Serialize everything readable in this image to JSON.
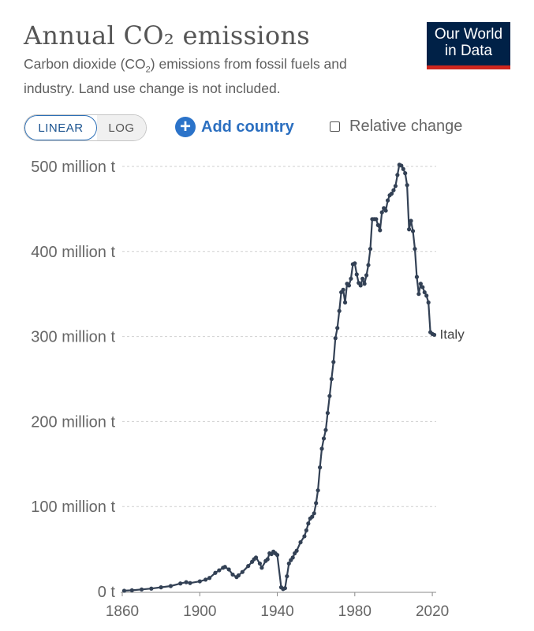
{
  "header": {
    "title": "Annual CO₂ emissions",
    "subtitle_part1": "Carbon dioxide (CO",
    "subtitle_sub": "2",
    "subtitle_part2": ") emissions from fossil fuels and industry. Land use change is not included.",
    "logo_line1": "Our World",
    "logo_line2": "in Data"
  },
  "controls": {
    "linear_label": "LINEAR",
    "log_label": "LOG",
    "add_country_label": "Add country",
    "relative_change_label": "Relative change"
  },
  "colors": {
    "line": "#334155",
    "logo_bg": "#002147",
    "logo_accent": "#ce261e",
    "accent_blue": "#2b73c9"
  },
  "chart_data": {
    "type": "line",
    "title": "Annual CO₂ emissions",
    "xlabel": "",
    "ylabel": "",
    "xlim": [
      1860,
      2022
    ],
    "ylim": [
      0,
      500000000
    ],
    "yticks": [
      {
        "value": 0,
        "label": "0 t"
      },
      {
        "value": 100000000,
        "label": "100 million t"
      },
      {
        "value": 200000000,
        "label": "200 million t"
      },
      {
        "value": 300000000,
        "label": "300 million t"
      },
      {
        "value": 400000000,
        "label": "400 million t"
      },
      {
        "value": 500000000,
        "label": "500 million t"
      }
    ],
    "xticks": [
      1860,
      1900,
      1940,
      1980,
      2020
    ],
    "grid": true,
    "series": [
      {
        "name": "Italy",
        "x": [
          1861,
          1865,
          1870,
          1875,
          1880,
          1885,
          1890,
          1893,
          1895,
          1900,
          1903,
          1905,
          1908,
          1910,
          1912,
          1913,
          1915,
          1917,
          1919,
          1920,
          1922,
          1925,
          1927,
          1928,
          1929,
          1931,
          1932,
          1934,
          1935,
          1936,
          1937,
          1938,
          1939,
          1940,
          1942,
          1943,
          1944,
          1945,
          1946,
          1947,
          1948,
          1949,
          1950,
          1952,
          1954,
          1955,
          1956,
          1957,
          1958,
          1959,
          1960,
          1961,
          1962,
          1963,
          1964,
          1965,
          1966,
          1967,
          1968,
          1969,
          1970,
          1971,
          1972,
          1973,
          1974,
          1975,
          1976,
          1977,
          1978,
          1979,
          1980,
          1981,
          1982,
          1983,
          1984,
          1985,
          1986,
          1987,
          1988,
          1989,
          1990,
          1991,
          1992,
          1993,
          1994,
          1995,
          1996,
          1997,
          1998,
          1999,
          2000,
          2001,
          2002,
          2003,
          2004,
          2005,
          2006,
          2007,
          2008,
          2009,
          2010,
          2011,
          2012,
          2013,
          2014,
          2015,
          2016,
          2017,
          2018,
          2019,
          2020,
          2021
        ],
        "values": [
          1000000,
          1500000,
          2500000,
          3500000,
          5000000,
          6500000,
          9500000,
          11000000,
          10000000,
          12000000,
          14000000,
          16000000,
          22000000,
          25000000,
          28000000,
          29000000,
          26000000,
          20000000,
          17000000,
          19000000,
          23000000,
          30000000,
          35000000,
          38000000,
          40000000,
          33000000,
          28000000,
          36000000,
          38000000,
          45000000,
          44000000,
          47000000,
          45000000,
          43000000,
          5000000,
          3000000,
          4000000,
          18000000,
          33000000,
          37000000,
          40000000,
          45000000,
          48000000,
          58000000,
          65000000,
          72000000,
          80000000,
          86000000,
          88000000,
          92000000,
          104000000,
          119000000,
          146000000,
          168000000,
          180000000,
          190000000,
          210000000,
          230000000,
          250000000,
          270000000,
          298000000,
          310000000,
          330000000,
          352000000,
          355000000,
          340000000,
          362000000,
          360000000,
          368000000,
          385000000,
          386000000,
          373000000,
          363000000,
          360000000,
          368000000,
          362000000,
          372000000,
          384000000,
          403000000,
          438000000,
          438000000,
          438000000,
          431000000,
          425000000,
          446000000,
          451000000,
          448000000,
          460000000,
          466000000,
          468000000,
          472000000,
          477000000,
          490000000,
          502000000,
          501000000,
          497000000,
          492000000,
          478000000,
          426000000,
          436000000,
          424000000,
          403000000,
          370000000,
          350000000,
          362000000,
          358000000,
          352000000,
          348000000,
          340000000,
          305000000,
          303000000,
          302000000
        ]
      }
    ],
    "series_label": "Italy"
  }
}
